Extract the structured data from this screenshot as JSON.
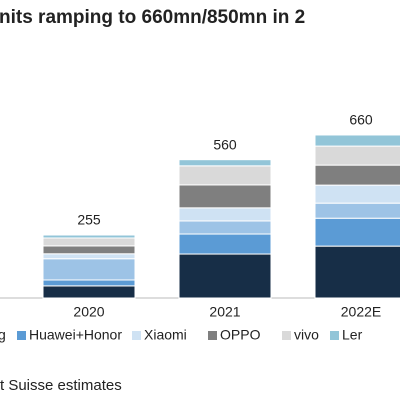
{
  "chart_data": {
    "type": "bar",
    "stacked": true,
    "title": "nits ramping to 660mn/850mn in 2",
    "categories": [
      "2020",
      "2021",
      "2022E"
    ],
    "series": [
      {
        "name": "g",
        "color": "#172e47",
        "values": [
          49,
          178,
          210
        ]
      },
      {
        "name": "Huawei+Honor",
        "color": "#5b9bd5",
        "values": [
          24,
          81,
          113
        ]
      },
      {
        "color": "#9dc3e6",
        "values": [
          86,
          53,
          61
        ]
      },
      {
        "name": "Xiaomi",
        "color": "#cfe2f3",
        "values": [
          20,
          53,
          73
        ]
      },
      {
        "name": "OPPO",
        "color": "#7f7f7f",
        "values": [
          32,
          93,
          81
        ]
      },
      {
        "name": "vivo",
        "color": "#d9d9d9",
        "values": [
          32,
          77,
          77
        ]
      },
      {
        "name": "Ler",
        "color": "#92c5d8",
        "values": [
          12,
          25,
          45
        ]
      }
    ],
    "totals": [
      255,
      560,
      660
    ],
    "source": "t Suisse estimates"
  }
}
